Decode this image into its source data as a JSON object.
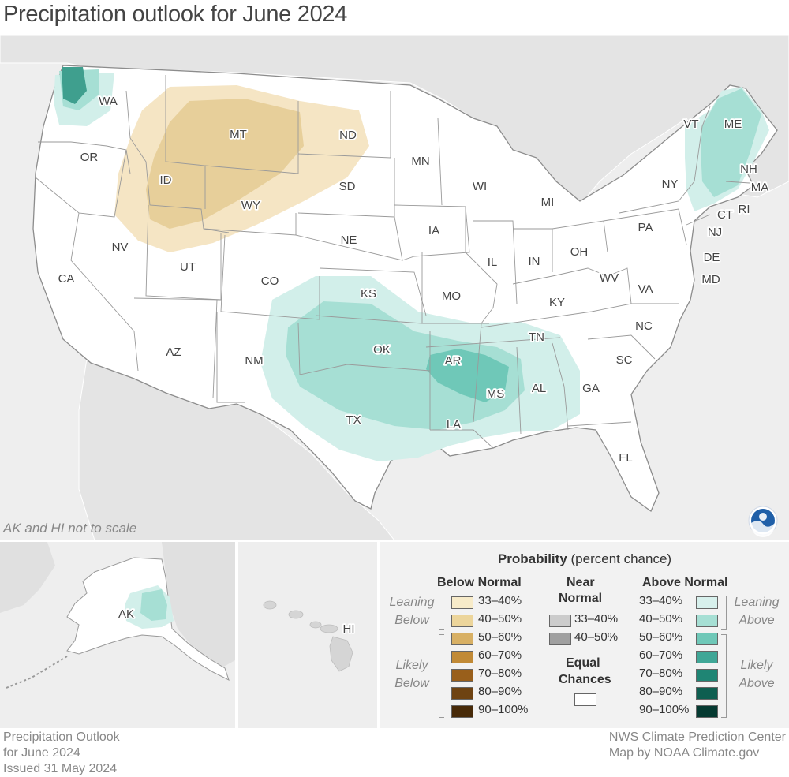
{
  "title": "Precipitation outlook for June 2024",
  "scale_note": "AK and HI not to scale",
  "states": [
    "WA",
    "OR",
    "ID",
    "MT",
    "ND",
    "SD",
    "WY",
    "MN",
    "WI",
    "MI",
    "NV",
    "CA",
    "UT",
    "AZ",
    "NE",
    "IA",
    "CO",
    "NM",
    "KS",
    "MO",
    "IL",
    "IN",
    "OH",
    "PA",
    "NY",
    "VT",
    "ME",
    "NH",
    "MA",
    "RI",
    "CT",
    "NJ",
    "DE",
    "MD",
    "WV",
    "VA",
    "KY",
    "TN",
    "NC",
    "SC",
    "OK",
    "AR",
    "MS",
    "AL",
    "GA",
    "TX",
    "LA",
    "FL"
  ],
  "inset_labels": {
    "alaska": "AK",
    "hawaii": "HI"
  },
  "legend": {
    "title_bold": "Probability",
    "title_rest": " (percent chance)",
    "below_normal": {
      "heading": "Below Normal",
      "leaning_label": "Leaning Below",
      "likely_label": "Likely Below",
      "ranges": [
        "33–40%",
        "40–50%",
        "50–60%",
        "60–70%",
        "70–80%",
        "80–90%",
        "90–100%"
      ],
      "colors": [
        "#f7ebc9",
        "#ecd59b",
        "#d8b064",
        "#c18a36",
        "#995f1b",
        "#6e4312",
        "#472a08"
      ]
    },
    "near_normal": {
      "heading_line1": "Near",
      "heading_line2": "Normal",
      "ranges": [
        "33–40%",
        "40–50%"
      ],
      "colors": [
        "#cccccc",
        "#a0a0a0"
      ]
    },
    "equal_chances": {
      "line1": "Equal",
      "line2": "Chances",
      "color": "#ffffff"
    },
    "above_normal": {
      "heading": "Above Normal",
      "leaning_label": "Leaning Above",
      "likely_label": "Likely Above",
      "ranges": [
        "33–40%",
        "40–50%",
        "50–60%",
        "60–70%",
        "70–80%",
        "80–90%",
        "90–100%"
      ],
      "colors": [
        "#d7f0ec",
        "#a6dfd4",
        "#6fc8b8",
        "#40a797",
        "#1f8574",
        "#0e5e50",
        "#053a31"
      ]
    }
  },
  "footer": {
    "left_line1": "Precipitation Outlook",
    "left_line2": "for June 2024",
    "left_line3": "Issued 31 May 2024",
    "right_line1": "NWS Climate Prediction Center",
    "right_line2": "Map by NOAA Climate.gov"
  },
  "colors": {
    "background": "#eeeeee",
    "land": "#ffffff",
    "border": "#9a9a9a",
    "noaa_blue": "#1f5fa8"
  }
}
